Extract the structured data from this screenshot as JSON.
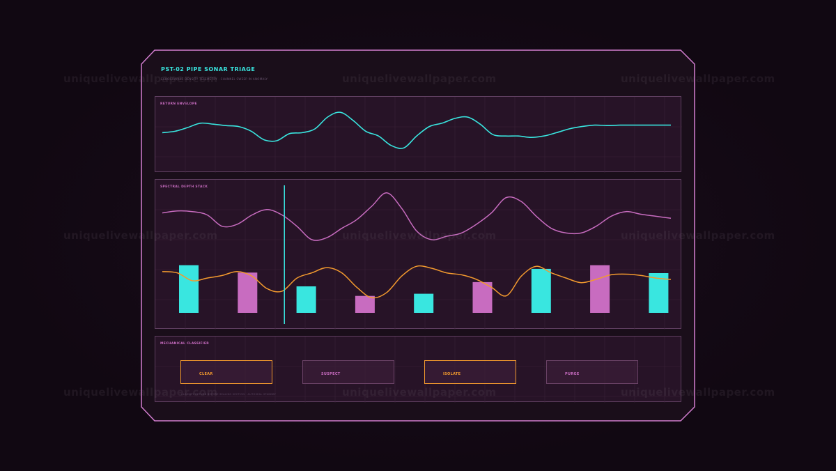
{
  "header": {
    "title": "PST-02  PIPE SONAR TRIAGE",
    "subtitle": "ECHOGRAPHIC DENSITY TELEMETRY  ·  CHANNEL SWEEP IN ANOMALY"
  },
  "panels": {
    "envelope": {
      "label": "RETURN ENVELOPE"
    },
    "spectral": {
      "label": "SPECTRAL DEPTH STACK"
    },
    "classifier": {
      "label": "MECHANICAL CLASSIFIER",
      "buttons": [
        {
          "label": "CLEAR",
          "style": "orange"
        },
        {
          "label": "SUSPECT",
          "style": "dim"
        },
        {
          "label": "ISOLATE",
          "style": "orange"
        },
        {
          "label": "PURGE",
          "style": "dim"
        }
      ],
      "footnote": "CLASSIFY RETURN BEFORE SEALING SECTION  ·  AUTOSEAL STANDBY"
    }
  },
  "watermark": "uniquelivewallpaper.com",
  "colors": {
    "cyan": "#39e6e0",
    "magenta": "#c86cc0",
    "orange": "#f39a2e",
    "frame": "#d37ed0"
  },
  "chart_data": [
    {
      "type": "line",
      "title": "RETURN ENVELOPE",
      "x": [
        0,
        2,
        4,
        6,
        8,
        10,
        12,
        14,
        16,
        18,
        20,
        22,
        24,
        26,
        28,
        30,
        32,
        34,
        36,
        38,
        40,
        42,
        44,
        46,
        48,
        50,
        52,
        54,
        56,
        58,
        60,
        62,
        64,
        66,
        68,
        70,
        72,
        74,
        76,
        78,
        80
      ],
      "series": [
        {
          "values": [
            0.42,
            0.45,
            0.53,
            0.62,
            0.6,
            0.57,
            0.55,
            0.45,
            0.27,
            0.25,
            0.4,
            0.42,
            0.5,
            0.75,
            0.85,
            0.68,
            0.45,
            0.35,
            0.15,
            0.1,
            0.35,
            0.55,
            0.62,
            0.72,
            0.75,
            0.6,
            0.38,
            0.35,
            0.35,
            0.32,
            0.35,
            0.42,
            0.5,
            0.55,
            0.58,
            0.57,
            0.58,
            0.58,
            0.58,
            0.58,
            0.58
          ]
        }
      ],
      "ylim": [
        0,
        1
      ]
    },
    {
      "type": "bar",
      "title": "SPECTRAL DEPTH STACK",
      "categories": [
        "1",
        "2",
        "3",
        "4",
        "5",
        "6",
        "7",
        "8",
        "9"
      ],
      "series": [
        {
          "values": [
            0.9,
            0.76,
            0.5,
            0.32,
            0.36,
            0.58,
            0.83,
            0.9,
            0.75
          ]
        }
      ],
      "bar_colors": [
        "cyan",
        "magenta",
        "cyan",
        "magenta",
        "cyan",
        "magenta",
        "cyan",
        "magenta",
        "cyan"
      ],
      "lines": [
        {
          "color": "magenta",
          "values": [
            0.65,
            0.68,
            0.67,
            0.62,
            0.45,
            0.48,
            0.62,
            0.7,
            0.62,
            0.45,
            0.25,
            0.28,
            0.42,
            0.55,
            0.75,
            0.95,
            0.72,
            0.38,
            0.25,
            0.3,
            0.35,
            0.48,
            0.65,
            0.88,
            0.82,
            0.6,
            0.42,
            0.35,
            0.35,
            0.45,
            0.6,
            0.67,
            0.63,
            0.6,
            0.57
          ]
        },
        {
          "color": "orange",
          "values": [
            0.62,
            0.6,
            0.48,
            0.52,
            0.56,
            0.62,
            0.55,
            0.36,
            0.32,
            0.52,
            0.6,
            0.68,
            0.6,
            0.38,
            0.22,
            0.3,
            0.55,
            0.7,
            0.67,
            0.6,
            0.57,
            0.5,
            0.38,
            0.25,
            0.55,
            0.7,
            0.6,
            0.52,
            0.45,
            0.5,
            0.57,
            0.58,
            0.56,
            0.52,
            0.5
          ]
        }
      ],
      "cursor_position": 0.245,
      "ylim": [
        0,
        1
      ]
    }
  ]
}
